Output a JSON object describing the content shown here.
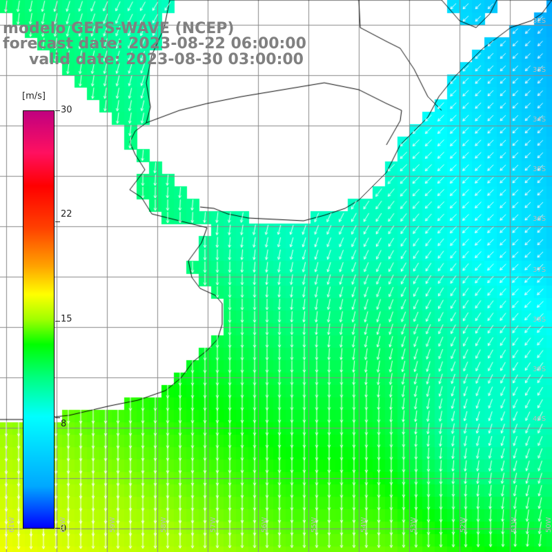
{
  "title": {
    "line1": "modelo GEFS-WAVE (NCEP)",
    "line2": "forecast date: 2023-08-22 06:00:00",
    "line3": "valid date: 2023-08-30 03:00:00"
  },
  "legend": {
    "unit": "[m/s]",
    "ticks": [
      {
        "value": 30,
        "label": "30"
      },
      {
        "value": 22,
        "label": "22"
      },
      {
        "value": 15,
        "label": "15"
      },
      {
        "value": 8,
        "label": "8"
      },
      {
        "value": 0,
        "label": "0"
      }
    ],
    "min": 0,
    "max": 30,
    "colors": [
      "#0000ff",
      "#00a8ff",
      "#00ffff",
      "#00ff80",
      "#00ff00",
      "#a0ff00",
      "#ffff00",
      "#ffa000",
      "#ff4000",
      "#ff0000",
      "#c00080"
    ]
  },
  "axes": {
    "lat_labels": [
      "32S",
      "33S",
      "34S",
      "35S",
      "36S",
      "37S",
      "38S",
      "39S",
      "40S"
    ],
    "lon_labels": [
      "61W",
      "60W",
      "59W",
      "58W",
      "57W",
      "56W",
      "55W",
      "54W",
      "53W",
      "52W",
      "51W",
      "50W"
    ]
  },
  "map_style": {
    "land_color": "#ffffff",
    "grid_color": "#888888",
    "coast_color": "#000000",
    "arrow_color": "#ffffff"
  }
}
